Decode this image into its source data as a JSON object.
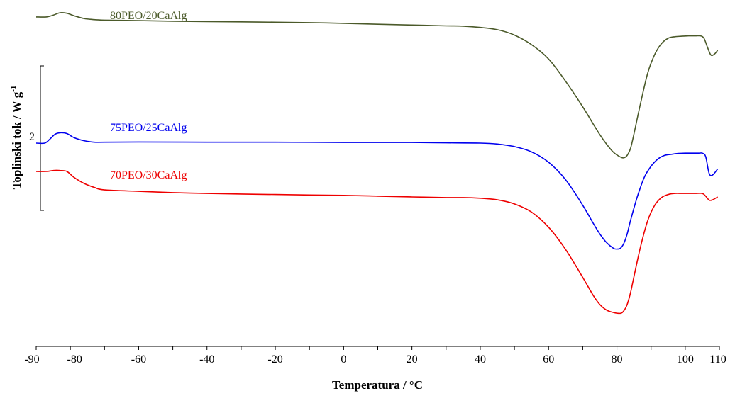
{
  "chart_data": {
    "type": "line",
    "xlabel": "Temperatura / °C",
    "ylabel": "Toplinski tok / W g",
    "ylabel_superscript": "-1",
    "xlim": [
      -90,
      110
    ],
    "x_ticks": [
      -90,
      -80,
      -60,
      -40,
      -20,
      0,
      20,
      40,
      60,
      80,
      100,
      110
    ],
    "y_scale_bar_label": "2",
    "grid": false,
    "series": [
      {
        "name": "80PEO/20CaAlg",
        "color": "#4b5a2a",
        "x": [
          -90,
          -87,
          -85,
          -83,
          -81,
          -79,
          -76,
          -73,
          -70,
          -60,
          -50,
          -40,
          -30,
          -20,
          -10,
          0,
          10,
          20,
          30,
          35,
          40,
          45,
          50,
          55,
          60,
          65,
          70,
          73,
          75,
          77,
          79,
          81,
          82,
          83,
          84,
          85,
          87,
          89,
          91,
          93,
          95,
          97,
          99,
          101,
          103,
          104.5,
          105.5,
          106.5,
          107.5,
          108.5,
          109.5
        ],
        "y": [
          0.26,
          0.26,
          0.15,
          0.0,
          0.03,
          0.18,
          0.36,
          0.43,
          0.46,
          0.49,
          0.53,
          0.55,
          0.57,
          0.59,
          0.62,
          0.66,
          0.72,
          0.77,
          0.82,
          0.84,
          0.92,
          1.06,
          1.4,
          2.0,
          2.9,
          4.3,
          5.9,
          6.95,
          7.65,
          8.25,
          8.75,
          9.05,
          9.1,
          8.95,
          8.5,
          7.6,
          5.6,
          3.8,
          2.65,
          1.95,
          1.6,
          1.5,
          1.47,
          1.45,
          1.45,
          1.45,
          1.6,
          2.15,
          2.65,
          2.6,
          2.35
        ]
      },
      {
        "name": "75PEO/25CaAlg",
        "color": "#0000ee",
        "x": [
          -90,
          -87.5,
          -86,
          -84.5,
          -83,
          -81,
          -79,
          -76,
          -73,
          -70,
          -60,
          -40,
          -20,
          0,
          20,
          30,
          40,
          45,
          50,
          55,
          60,
          65,
          70,
          73,
          75,
          77,
          79,
          80,
          81,
          82,
          83,
          84,
          86,
          88,
          90,
          92,
          94,
          96,
          98,
          100,
          102,
          104,
          105,
          106,
          107,
          108,
          109.5
        ],
        "y": [
          0.0,
          0.0,
          -0.25,
          -0.55,
          -0.65,
          -0.6,
          -0.35,
          -0.15,
          -0.06,
          -0.06,
          -0.07,
          -0.06,
          -0.06,
          -0.04,
          -0.04,
          -0.02,
          0.0,
          0.06,
          0.22,
          0.55,
          1.2,
          2.3,
          3.9,
          5.0,
          5.7,
          6.25,
          6.6,
          6.65,
          6.6,
          6.3,
          5.7,
          4.85,
          3.35,
          2.15,
          1.45,
          1.0,
          0.77,
          0.7,
          0.65,
          0.63,
          0.63,
          0.63,
          0.63,
          0.85,
          1.9,
          2.0,
          1.62
        ]
      },
      {
        "name": "70PEO/30CaAlg",
        "color": "#ee0000",
        "x": [
          -90,
          -87,
          -85,
          -83,
          -81,
          -79,
          -76,
          -73,
          -70,
          -60,
          -50,
          -40,
          -30,
          -20,
          -10,
          0,
          10,
          20,
          30,
          35,
          40,
          45,
          50,
          55,
          60,
          65,
          70,
          73,
          75,
          77,
          79,
          81,
          82,
          83,
          84,
          85,
          87,
          89,
          91,
          93,
          95,
          97,
          99,
          101,
          103,
          105,
          106,
          107,
          108,
          109.5
        ],
        "y": [
          0.0,
          0.0,
          -0.06,
          -0.06,
          0.0,
          0.36,
          0.75,
          1.0,
          1.16,
          1.25,
          1.33,
          1.38,
          1.42,
          1.45,
          1.48,
          1.5,
          1.55,
          1.6,
          1.64,
          1.64,
          1.68,
          1.78,
          2.04,
          2.55,
          3.5,
          4.9,
          6.65,
          7.75,
          8.35,
          8.7,
          8.85,
          8.9,
          8.75,
          8.35,
          7.6,
          6.6,
          4.65,
          3.1,
          2.15,
          1.65,
          1.45,
          1.38,
          1.38,
          1.38,
          1.38,
          1.38,
          1.55,
          1.8,
          1.78,
          1.6
        ]
      }
    ]
  }
}
